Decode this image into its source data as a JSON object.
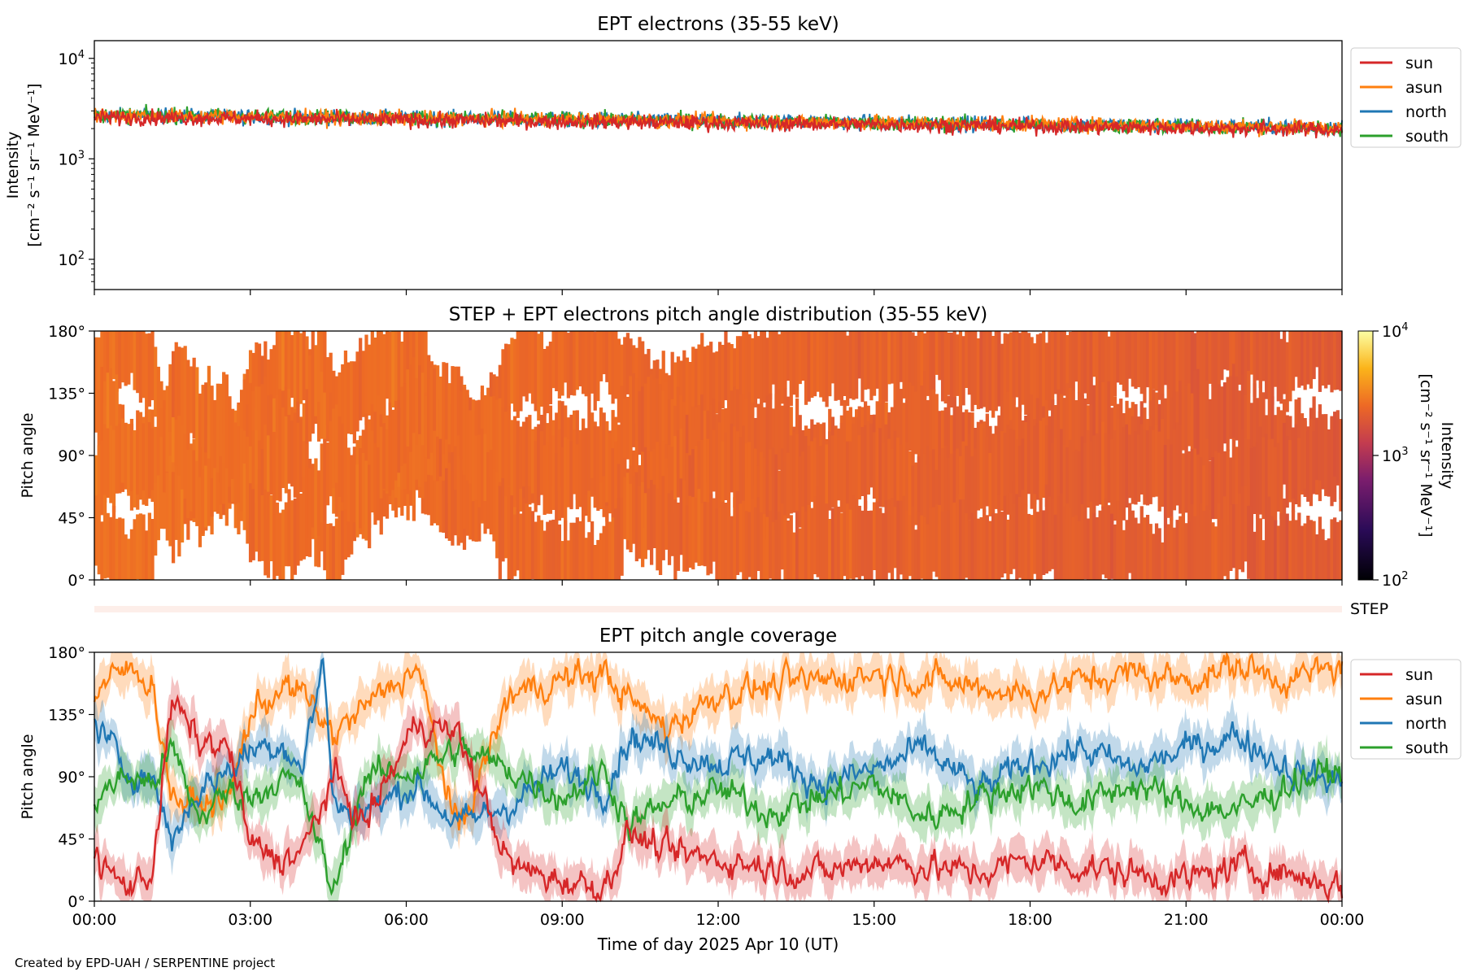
{
  "colors": {
    "sun": "#d62728",
    "asun": "#ff7f0e",
    "north": "#1f77b4",
    "south": "#2ca02c"
  },
  "footer": "Created by EPD-UAH / SERPENTINE project",
  "chart_data": [
    {
      "type": "line",
      "title": "EPT electrons (35-55 keV)",
      "ylabel_line1": "Intensity",
      "ylabel_line2": "[cm⁻² s⁻¹ sr⁻¹ MeV⁻¹]",
      "yscale": "log",
      "ylim": [
        50,
        15000
      ],
      "yticks": [
        {
          "value": 100,
          "base": "10",
          "exp": "2"
        },
        {
          "value": 1000,
          "base": "10",
          "exp": "3"
        },
        {
          "value": 10000,
          "base": "10",
          "exp": "4"
        }
      ],
      "x_hours_range": [
        0,
        24
      ],
      "legend": [
        "sun",
        "asun",
        "north",
        "south"
      ],
      "legend_position": "outside-right",
      "series": [
        {
          "name": "north",
          "start_intensity": 2700,
          "end_intensity": 2050
        },
        {
          "name": "south",
          "start_intensity": 2750,
          "end_intensity": 2000
        },
        {
          "name": "asun",
          "start_intensity": 2700,
          "end_intensity": 2050
        },
        {
          "name": "sun",
          "start_intensity": 2600,
          "end_intensity": 1950
        }
      ]
    },
    {
      "type": "heatmap",
      "title": "STEP + EPT electrons pitch angle distribution (35-55 keV)",
      "ylabel": "Pitch angle",
      "ylim": [
        0,
        180
      ],
      "yticks": [
        "0°",
        "45°",
        "90°",
        "135°",
        "180°"
      ],
      "colorbar": {
        "label_line1": "Intensity",
        "label_line2": "[cm⁻² s⁻¹ sr⁻¹ MeV⁻¹]",
        "range": [
          100,
          10000
        ],
        "ticks": [
          {
            "value": 100,
            "base": "10",
            "exp": "2"
          },
          {
            "value": 1000,
            "base": "10",
            "exp": "3"
          },
          {
            "value": 10000,
            "base": "10",
            "exp": "4"
          }
        ]
      },
      "intensity_start": 2700,
      "intensity_end": 2000,
      "step_label": "STEP"
    },
    {
      "type": "line",
      "title": "EPT pitch angle coverage",
      "ylabel": "Pitch angle",
      "xlabel": "Time of day 2025 Apr 10 (UT)",
      "ylim": [
        0,
        180
      ],
      "yticks": [
        "0°",
        "45°",
        "90°",
        "135°",
        "180°"
      ],
      "xticks": [
        "00:00",
        "03:00",
        "06:00",
        "09:00",
        "12:00",
        "15:00",
        "18:00",
        "21:00",
        "00:00"
      ],
      "legend": [
        "sun",
        "asun",
        "north",
        "south"
      ],
      "legend_position": "outside-right",
      "series": [
        {
          "name": "asun",
          "hours": [
            0,
            0.6,
            1.1,
            1.5,
            2.0,
            2.6,
            3.0,
            3.6,
            4.0,
            4.6,
            5.2,
            6.2,
            7.0,
            8.0,
            9.0,
            9.8,
            10.3,
            11.0,
            12.0,
            13.0,
            14.0,
            15.0,
            16.0,
            17.0,
            18.0,
            19.0,
            20.0,
            21.0,
            22.0,
            23.0,
            24.0
          ],
          "angles": [
            150,
            168,
            160,
            75,
            70,
            75,
            135,
            155,
            150,
            120,
            140,
            170,
            48,
            150,
            160,
            165,
            145,
            125,
            150,
            155,
            160,
            165,
            160,
            155,
            150,
            160,
            165,
            160,
            170,
            160,
            170
          ]
        },
        {
          "name": "north",
          "hours": [
            0,
            0.6,
            1.1,
            1.5,
            2.0,
            2.6,
            3.0,
            3.6,
            4.0,
            4.4,
            4.6,
            5.2,
            6.2,
            7.0,
            8.0,
            9.0,
            9.8,
            10.3,
            11.0,
            12.0,
            13.0,
            14.0,
            15.0,
            16.0,
            17.0,
            18.0,
            19.0,
            20.0,
            21.0,
            22.0,
            23.0,
            24.0
          ],
          "angles": [
            130,
            95,
            90,
            45,
            80,
            95,
            110,
            115,
            95,
            175,
            70,
            65,
            85,
            55,
            70,
            95,
            80,
            120,
            110,
            100,
            105,
            85,
            95,
            110,
            80,
            100,
            110,
            95,
            110,
            120,
            95,
            85
          ]
        },
        {
          "name": "south",
          "hours": [
            0,
            0.6,
            1.1,
            1.5,
            2.0,
            2.6,
            3.0,
            3.6,
            4.0,
            4.4,
            4.6,
            5.2,
            6.2,
            7.0,
            8.0,
            9.0,
            9.8,
            10.3,
            11.0,
            12.0,
            13.0,
            14.0,
            15.0,
            16.0,
            17.0,
            18.0,
            19.0,
            20.0,
            21.0,
            22.0,
            23.0,
            24.0
          ],
          "angles": [
            75,
            90,
            85,
            110,
            60,
            80,
            75,
            90,
            80,
            30,
            5,
            90,
            95,
            110,
            95,
            75,
            95,
            55,
            70,
            80,
            65,
            75,
            85,
            60,
            75,
            85,
            70,
            85,
            70,
            65,
            85,
            95
          ]
        },
        {
          "name": "sun",
          "hours": [
            0,
            0.6,
            1.1,
            1.5,
            2.0,
            2.6,
            3.0,
            3.6,
            4.0,
            4.6,
            5.2,
            6.2,
            7.0,
            8.0,
            9.0,
            9.8,
            10.3,
            11.0,
            12.0,
            13.0,
            14.0,
            15.0,
            16.0,
            17.0,
            18.0,
            19.0,
            20.0,
            21.0,
            22.0,
            23.0,
            24.0
          ],
          "angles": [
            30,
            10,
            20,
            145,
            115,
            110,
            40,
            30,
            35,
            90,
            55,
            130,
            120,
            25,
            15,
            10,
            50,
            35,
            30,
            25,
            20,
            30,
            25,
            20,
            30,
            25,
            20,
            15,
            25,
            20,
            10
          ]
        }
      ]
    }
  ]
}
